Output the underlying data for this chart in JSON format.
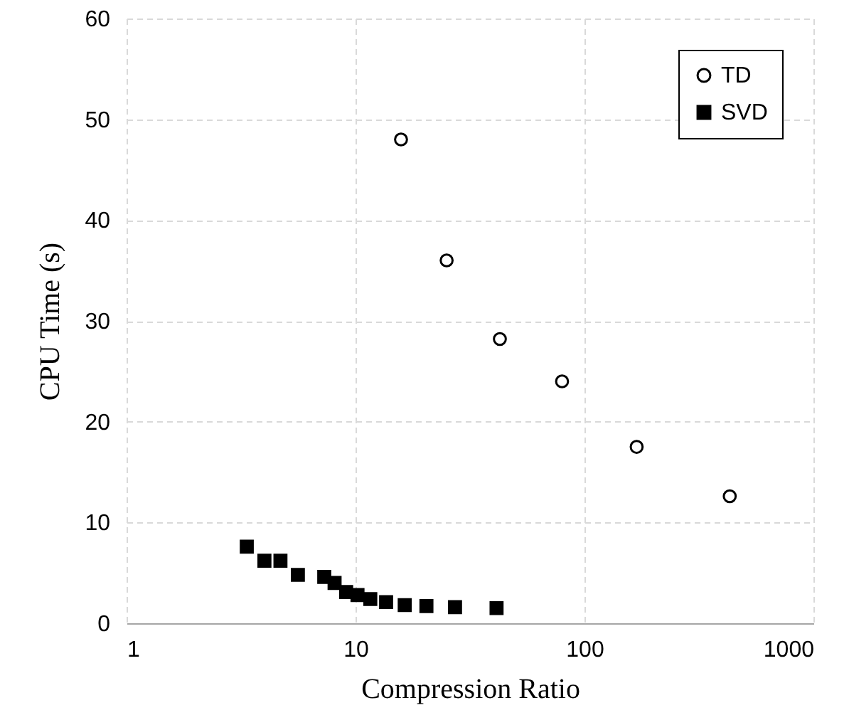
{
  "chart_data": {
    "type": "scatter",
    "xlabel": "Compression Ratio",
    "ylabel": "CPU Time (s)",
    "log": "x",
    "xlim": [
      1,
      1000
    ],
    "xticks": [
      1,
      10,
      100,
      1000
    ],
    "ylim": [
      0,
      60
    ],
    "yticks": [
      0,
      10,
      20,
      30,
      40,
      50,
      60
    ],
    "grid": true,
    "legend": "top right",
    "series": [
      {
        "name": "TD",
        "color": "#000000",
        "marker": "circle",
        "x": [
          15.8,
          25,
          42.7,
          79.8,
          169,
          431
        ],
        "values": [
          48.0,
          36.0,
          28.2,
          24.0,
          17.5,
          12.6
        ]
      },
      {
        "name": "SVD",
        "color": "#000000",
        "marker": "square",
        "x": [
          3.35,
          4.0,
          4.7,
          5.6,
          7.3,
          8.1,
          9.1,
          10.2,
          11.6,
          13.6,
          16.4,
          20.4,
          27.2,
          41.3
        ],
        "values": [
          7.6,
          6.2,
          6.2,
          4.8,
          4.6,
          4.0,
          3.1,
          2.8,
          2.4,
          2.1,
          1.8,
          1.7,
          1.6,
          1.5
        ]
      }
    ]
  }
}
